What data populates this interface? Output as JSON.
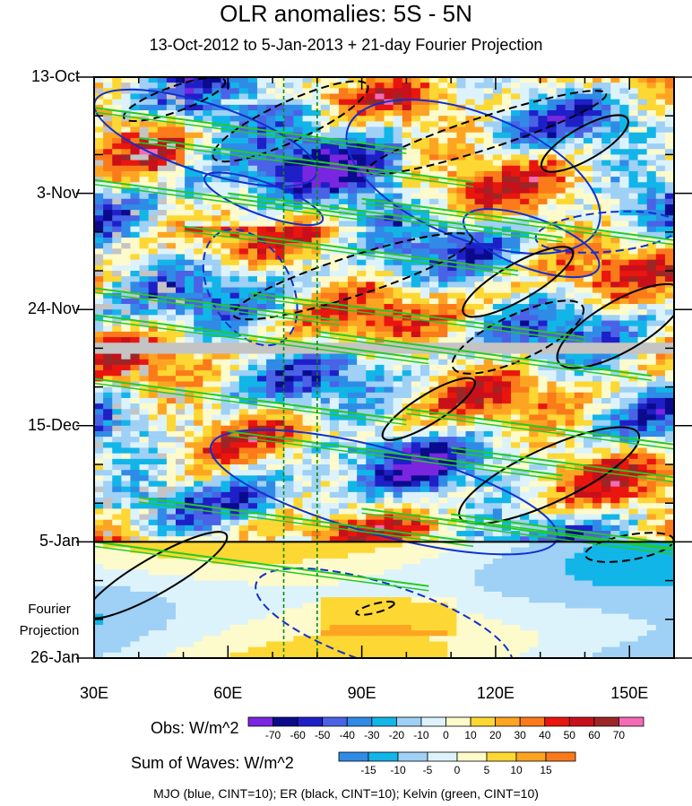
{
  "chart_data": {
    "type": "heatmap",
    "title": "OLR anomalies: 5S - 5N",
    "subtitle": "13-Oct-2012 to 5-Jan-2013 + 21-day Fourier Projection",
    "x_ticks": [
      "30E",
      "60E",
      "90E",
      "120E",
      "150E"
    ],
    "x_tick_values": [
      30,
      60,
      90,
      120,
      150
    ],
    "xlim": [
      30,
      160
    ],
    "y_ticks": [
      "13-Oct",
      "3-Nov",
      "24-Nov",
      "15-Dec",
      "5-Jan",
      "26-Jan"
    ],
    "y_tick_days": [
      0,
      21,
      42,
      63,
      84,
      105
    ],
    "ylim_days": [
      0,
      105
    ],
    "projection_start_day": 84,
    "projection_label": [
      "Fourier",
      "Projection"
    ],
    "reference_longitudes": [
      72.5,
      80
    ],
    "obs_colorbar": {
      "title": "Obs: W/m^2",
      "labels": [
        "-70",
        "-60",
        "-50",
        "-40",
        "-30",
        "-20",
        "-10",
        "0",
        "10",
        "20",
        "30",
        "40",
        "50",
        "60",
        "70"
      ],
      "colors": [
        "#7a26e0",
        "#0a0a8c",
        "#1f1fc8",
        "#4a62e6",
        "#2f8be6",
        "#12b5e8",
        "#9fd0f5",
        "#ddf3fb",
        "#fdfacb",
        "#fdd733",
        "#fda522",
        "#fb7a1a",
        "#e8160f",
        "#c8101a",
        "#9c2626",
        "#f56ab6"
      ]
    },
    "waves_colorbar": {
      "title": "Sum of Waves: W/m^2",
      "labels": [
        "-15",
        "-10",
        "-5",
        "0",
        "5",
        "10",
        "15"
      ],
      "colors": [
        "#2f8be6",
        "#12b5e8",
        "#9fd0f5",
        "#ddf3fb",
        "#fdfacb",
        "#fdd733",
        "#fda522",
        "#fb7a1a"
      ]
    },
    "contours": [
      {
        "name": "MJO",
        "color": "#1030d0",
        "cint": 10
      },
      {
        "name": "ER",
        "color": "#000000",
        "cint": 10
      },
      {
        "name": "Kelvin",
        "color": "#22cc22",
        "cint": 10
      }
    ],
    "footer": "MJO (blue, CINT=10); ER (black, CINT=10); Kelvin (green, CINT=10)"
  }
}
